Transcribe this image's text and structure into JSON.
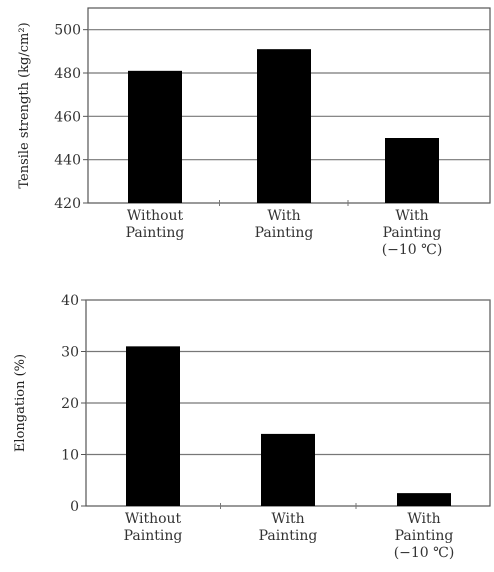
{
  "chart_data": [
    {
      "type": "bar",
      "categories": [
        [
          "Without",
          "Painting"
        ],
        [
          "With",
          "Painting"
        ],
        [
          "With",
          "Painting",
          "(−10 ℃)"
        ]
      ],
      "values": [
        481,
        491,
        450
      ],
      "ylabel": "Tensile strength (kg/cm²)",
      "ylim": [
        420,
        510
      ],
      "yticks": [
        420,
        440,
        460,
        480,
        500
      ],
      "grid": "horizontal",
      "bar_color": "#000000"
    },
    {
      "type": "bar",
      "categories": [
        [
          "Without",
          "Painting"
        ],
        [
          "With",
          "Painting"
        ],
        [
          "With",
          "Painting",
          "(−10 ℃)"
        ]
      ],
      "values": [
        31,
        14,
        2.5
      ],
      "ylabel": "Elongation (%)",
      "ylim": [
        0,
        40
      ],
      "yticks": [
        0,
        10,
        20,
        30,
        40
      ],
      "grid": "horizontal",
      "bar_color": "#000000"
    }
  ]
}
